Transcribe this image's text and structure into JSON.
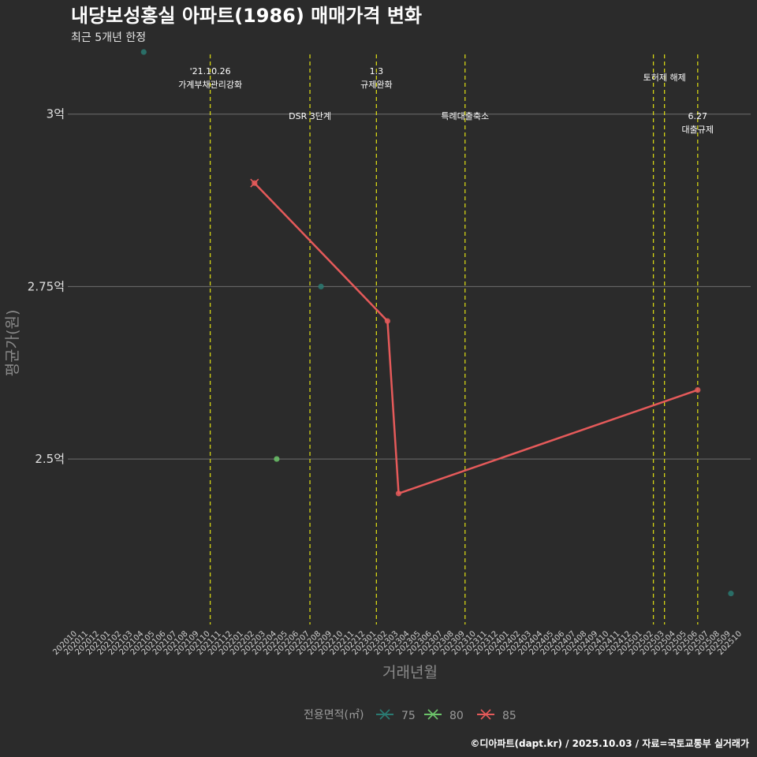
{
  "chart_data": {
    "type": "line",
    "title": "내당보성홍실 아파트(1986) 매매가격 변화",
    "subtitle": "최근 5개년 한정",
    "xlabel": "거래년월",
    "ylabel": "평균가(원)",
    "caption": "©디아파트(dapt.kr) / 2025.10.03 / 자료=국토교통부 실거래가",
    "x_ticks": [
      "202010",
      "202011",
      "202012",
      "202101",
      "202102",
      "202103",
      "202104",
      "202105",
      "202106",
      "202107",
      "202108",
      "202109",
      "202110",
      "202111",
      "202112",
      "202201",
      "202202",
      "202203",
      "202204",
      "202205",
      "202206",
      "202207",
      "202208",
      "202209",
      "202210",
      "202211",
      "202212",
      "202301",
      "202302",
      "202303",
      "202304",
      "202305",
      "202306",
      "202307",
      "202308",
      "202309",
      "202310",
      "202311",
      "202312",
      "202401",
      "202402",
      "202403",
      "202404",
      "202405",
      "202406",
      "202407",
      "202408",
      "202409",
      "202410",
      "202411",
      "202412",
      "202501",
      "202502",
      "202503",
      "202504",
      "202505",
      "202506",
      "202507",
      "202508",
      "202509",
      "202510"
    ],
    "y_ticks": [
      {
        "value": 2.5,
        "label": "2.5억"
      },
      {
        "value": 2.75,
        "label": "2.75억"
      },
      {
        "value": 3.0,
        "label": "3억"
      }
    ],
    "ylim": [
      2.26,
      3.09
    ],
    "legend_title": "전용면적(㎡)",
    "series": [
      {
        "name": "75",
        "color": "#2a7a72",
        "line": false,
        "points": [
          {
            "x": "202104",
            "y": 3.09
          },
          {
            "x": "202208",
            "y": 2.75
          },
          {
            "x": "202509",
            "y": 2.305
          }
        ]
      },
      {
        "name": "80",
        "color": "#6cc46a",
        "line": false,
        "points": [
          {
            "x": "202204",
            "y": 2.5
          }
        ]
      },
      {
        "name": "85",
        "color": "#e55a5a",
        "line": true,
        "points": [
          {
            "x": "202202",
            "y": 2.9
          },
          {
            "x": "202302",
            "y": 2.7
          },
          {
            "x": "202303",
            "y": 2.45
          },
          {
            "x": "202506",
            "y": 2.6
          }
        ]
      }
    ],
    "events": [
      {
        "x": "202110",
        "lines": [
          "'21.10.26",
          "가계부채관리강화"
        ],
        "row": 0
      },
      {
        "x": "202207",
        "lines": [
          "DSR 3단계"
        ],
        "row": 2
      },
      {
        "x": "202301",
        "lines": [
          "1.3",
          "규제완화"
        ],
        "row": 0
      },
      {
        "x": "202309",
        "lines": [
          "특례대출축소"
        ],
        "row": 2
      },
      {
        "x": "202502",
        "lines": [],
        "row": 1
      },
      {
        "x": "202503",
        "lines": [
          "토허제 해제"
        ],
        "row": 1
      },
      {
        "x": "202506",
        "lines": [
          "6.27",
          "대출규제"
        ],
        "row": 2
      }
    ],
    "event_color": "#d4d414"
  }
}
